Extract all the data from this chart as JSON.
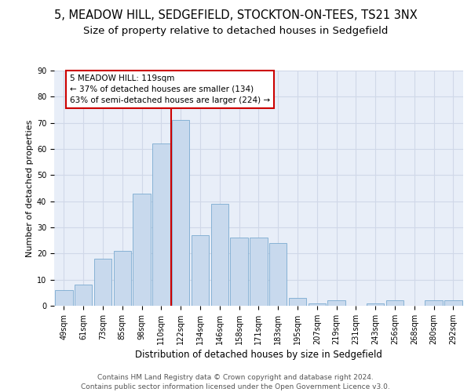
{
  "title": "5, MEADOW HILL, SEDGEFIELD, STOCKTON-ON-TEES, TS21 3NX",
  "subtitle": "Size of property relative to detached houses in Sedgefield",
  "xlabel": "Distribution of detached houses by size in Sedgefield",
  "ylabel": "Number of detached properties",
  "bar_color": "#c8d9ed",
  "bar_edge_color": "#7aaad0",
  "categories": [
    "49sqm",
    "61sqm",
    "73sqm",
    "85sqm",
    "98sqm",
    "110sqm",
    "122sqm",
    "134sqm",
    "146sqm",
    "158sqm",
    "171sqm",
    "183sqm",
    "195sqm",
    "207sqm",
    "219sqm",
    "231sqm",
    "243sqm",
    "256sqm",
    "268sqm",
    "280sqm",
    "292sqm"
  ],
  "values": [
    6,
    8,
    18,
    21,
    43,
    62,
    71,
    27,
    39,
    26,
    26,
    24,
    3,
    1,
    2,
    0,
    1,
    2,
    0,
    2,
    2
  ],
  "vline_x_idx": 5.5,
  "vline_color": "#cc0000",
  "annotation_text": "5 MEADOW HILL: 119sqm\n← 37% of detached houses are smaller (134)\n63% of semi-detached houses are larger (224) →",
  "annotation_box_color": "#ffffff",
  "annotation_box_edge": "#cc0000",
  "ylim": [
    0,
    90
  ],
  "yticks": [
    0,
    10,
    20,
    30,
    40,
    50,
    60,
    70,
    80,
    90
  ],
  "grid_color": "#d0d8e8",
  "background_color": "#e8eef8",
  "footer": "Contains HM Land Registry data © Crown copyright and database right 2024.\nContains public sector information licensed under the Open Government Licence v3.0.",
  "title_fontsize": 10.5,
  "subtitle_fontsize": 9.5,
  "xlabel_fontsize": 8.5,
  "ylabel_fontsize": 8,
  "tick_fontsize": 7,
  "annot_fontsize": 7.5,
  "footer_fontsize": 6.5
}
